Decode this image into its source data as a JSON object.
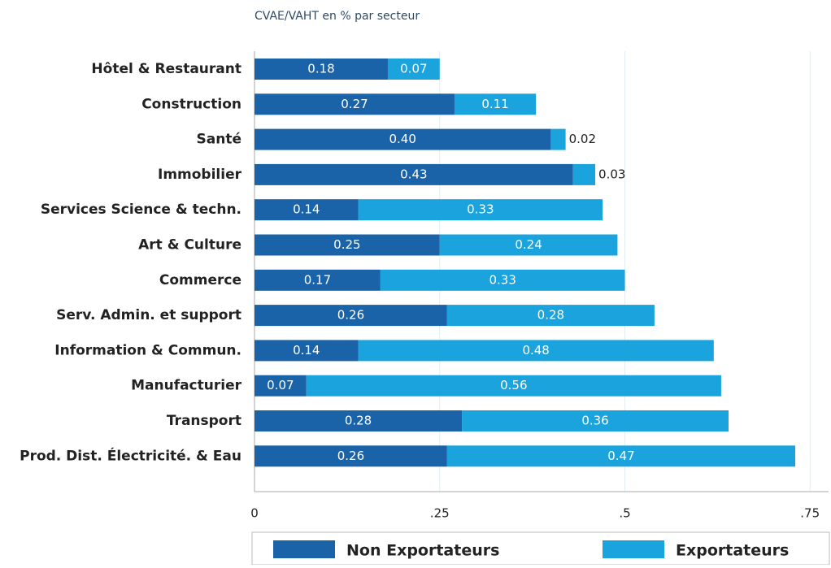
{
  "chart_data": {
    "type": "stacked-barh",
    "title": "CVAE/VAHT en % par secteur",
    "categories": [
      "Hôtel & Restaurant",
      "Construction",
      "Santé",
      "Immobilier",
      "Services Science & techn.",
      "Art & Culture",
      "Commerce",
      "Serv. Admin. et support ",
      "Information & Commun.",
      "Manufacturier",
      "Transport",
      "Prod. Dist. Électricité. & Eau"
    ],
    "series": [
      {
        "name": "Non Exportateurs",
        "color": "#1a63a8",
        "values": [
          0.18,
          0.27,
          0.4,
          0.43,
          0.14,
          0.25,
          0.17,
          0.26,
          0.14,
          0.07,
          0.28,
          0.26
        ],
        "value_labels": [
          "0.18",
          "0.27",
          "0.40",
          "0.43",
          "0.14",
          "0.25",
          "0.17",
          "0.26",
          "0.14",
          "0.07",
          "0.28",
          "0.26"
        ]
      },
      {
        "name": "Exportateurs",
        "color": "#1aa3dc",
        "values": [
          0.07,
          0.11,
          0.02,
          0.03,
          0.33,
          0.24,
          0.33,
          0.28,
          0.48,
          0.56,
          0.36,
          0.47
        ],
        "value_labels": [
          "0.07",
          "0.11",
          "0.02",
          "0.03",
          "0.33",
          "0.24",
          "0.33",
          "0.28",
          "0.48",
          "0.56",
          "0.36",
          "0.47"
        ]
      }
    ],
    "xlim": [
      0,
      0.775
    ],
    "xticks": [
      0,
      {
        "value": 0.25,
        "label": ".25"
      },
      {
        "value": 0.5,
        "label": ".5"
      },
      {
        "value": 0.75,
        "label": ".75"
      }
    ],
    "grid": true
  }
}
